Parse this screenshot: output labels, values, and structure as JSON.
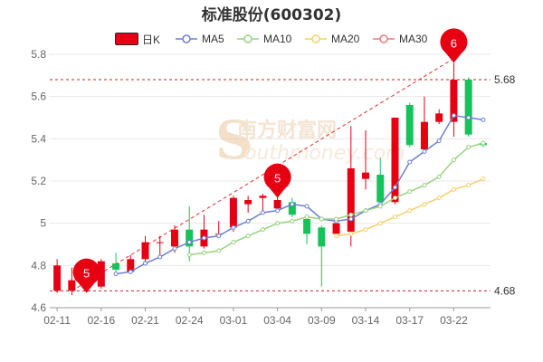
{
  "title": "标准股份(600302)",
  "legend": {
    "kline": "日K",
    "ma5": "MA5",
    "ma10": "MA10",
    "ma20": "MA20",
    "ma30": "MA30"
  },
  "colors": {
    "up": "#e60012",
    "down": "#15c35b",
    "ma5": "#6d7fd3",
    "ma10": "#98d37f",
    "ma20": "#f7cf6b",
    "ma30": "#ee7b7b",
    "grid": "#e8e8e8",
    "marker": "#e60012"
  },
  "watermark": {
    "cn": "南方财富网",
    "en": "outhmoney.com",
    "logo": "S"
  },
  "chart_data": {
    "type": "candlestick",
    "ylim": [
      4.6,
      5.8
    ],
    "y_ticks": [
      4.6,
      4.8,
      5,
      5.2,
      5.4,
      5.6,
      5.8
    ],
    "y_tick_labels": [
      "4.6",
      "4.8",
      "5",
      "5.2",
      "5.4",
      "5.6",
      "5.8"
    ],
    "x_tick_labels": [
      {
        "index": 0,
        "label": "02-11"
      },
      {
        "index": 3,
        "label": "02-16"
      },
      {
        "index": 6,
        "label": "02-21"
      },
      {
        "index": 9,
        "label": "02-24"
      },
      {
        "index": 12,
        "label": "03-01"
      },
      {
        "index": 15,
        "label": "03-04"
      },
      {
        "index": 18,
        "label": "03-09"
      },
      {
        "index": 21,
        "label": "03-14"
      },
      {
        "index": 24,
        "label": "03-17"
      },
      {
        "index": 27,
        "label": "03-22"
      }
    ],
    "candles": [
      {
        "open": 4.68,
        "close": 4.8,
        "high": 4.83,
        "low": 4.67
      },
      {
        "open": 4.68,
        "close": 4.73,
        "high": 4.79,
        "low": 4.66
      },
      {
        "open": 4.72,
        "close": 4.69,
        "high": 4.74,
        "low": 4.68
      },
      {
        "open": 4.7,
        "close": 4.82,
        "high": 4.83,
        "low": 4.69
      },
      {
        "open": 4.81,
        "close": 4.78,
        "high": 4.86,
        "low": 4.77
      },
      {
        "open": 4.77,
        "close": 4.83,
        "high": 4.85,
        "low": 4.76
      },
      {
        "open": 4.83,
        "close": 4.91,
        "high": 4.94,
        "low": 4.82
      },
      {
        "open": 4.91,
        "close": 4.91,
        "high": 4.94,
        "low": 4.84
      },
      {
        "open": 4.89,
        "close": 4.97,
        "high": 4.99,
        "low": 4.86
      },
      {
        "open": 4.97,
        "close": 4.89,
        "high": 5.08,
        "low": 4.82
      },
      {
        "open": 4.89,
        "close": 4.97,
        "high": 5.04,
        "low": 4.88
      },
      {
        "open": 4.95,
        "close": 4.95,
        "high": 5.01,
        "low": 4.93
      },
      {
        "open": 4.98,
        "close": 5.12,
        "high": 5.13,
        "low": 4.96
      },
      {
        "open": 5.09,
        "close": 5.11,
        "high": 5.13,
        "low": 5.05
      },
      {
        "open": 5.12,
        "close": 5.13,
        "high": 5.14,
        "low": 5.06
      },
      {
        "open": 5.07,
        "close": 5.11,
        "high": 5.14,
        "low": 5.06
      },
      {
        "open": 5.1,
        "close": 5.04,
        "high": 5.12,
        "low": 5.03
      },
      {
        "open": 5.02,
        "close": 4.95,
        "high": 5.03,
        "low": 4.9
      },
      {
        "open": 4.98,
        "close": 4.89,
        "high": 4.99,
        "low": 4.7
      },
      {
        "open": 4.95,
        "close": 5.0,
        "high": 5.01,
        "low": 4.94
      },
      {
        "open": 4.96,
        "close": 5.26,
        "high": 5.46,
        "low": 4.89
      },
      {
        "open": 5.21,
        "close": 5.24,
        "high": 5.44,
        "low": 5.16
      },
      {
        "open": 5.23,
        "close": 5.1,
        "high": 5.31,
        "low": 5.09
      },
      {
        "open": 5.1,
        "close": 5.5,
        "high": 5.5,
        "low": 5.09
      },
      {
        "open": 5.56,
        "close": 5.37,
        "high": 5.57,
        "low": 5.36
      },
      {
        "open": 5.35,
        "close": 5.48,
        "high": 5.6,
        "low": 5.34
      },
      {
        "open": 5.48,
        "close": 5.52,
        "high": 5.54,
        "low": 5.47
      },
      {
        "open": 5.48,
        "close": 5.68,
        "high": 5.76,
        "low": 5.41
      },
      {
        "open": 5.68,
        "close": 5.42,
        "high": 5.69,
        "low": 5.41
      },
      {
        "open": 5.38,
        "close": 5.37,
        "high": 5.39,
        "low": 5.36
      }
    ],
    "ma5": [
      null,
      null,
      null,
      null,
      4.76,
      4.77,
      4.81,
      4.84,
      4.88,
      4.91,
      4.93,
      4.94,
      4.98,
      5.01,
      5.05,
      5.06,
      5.09,
      5.08,
      5.02,
      5.01,
      5.02,
      5.06,
      5.09,
      5.17,
      5.29,
      5.34,
      5.39,
      5.51,
      5.5,
      5.49
    ],
    "ma10": [
      null,
      null,
      null,
      null,
      null,
      null,
      null,
      null,
      null,
      4.85,
      4.86,
      4.87,
      4.91,
      4.94,
      4.97,
      5.0,
      5.01,
      5.03,
      5.02,
      5.02,
      5.04,
      5.06,
      5.08,
      5.12,
      5.15,
      5.18,
      5.22,
      5.3,
      5.36,
      5.38
    ],
    "ma20": [
      null,
      null,
      null,
      null,
      null,
      null,
      null,
      null,
      null,
      null,
      null,
      null,
      null,
      null,
      null,
      null,
      null,
      null,
      null,
      4.94,
      4.95,
      4.97,
      5.0,
      5.03,
      5.06,
      5.09,
      5.12,
      5.16,
      5.18,
      5.21
    ],
    "ma30": [],
    "reference_lines": [
      {
        "value": 5.68,
        "label": "5.68"
      },
      {
        "value": 4.68,
        "label": "4.68"
      }
    ],
    "trend_line": {
      "from_index": 1,
      "from_value": 4.68,
      "to_index": 27,
      "to_value": 5.78
    },
    "markers": [
      {
        "index": 2,
        "value": 4.67,
        "label": "5"
      },
      {
        "index": 15,
        "value": 5.12,
        "label": "5"
      },
      {
        "index": 27,
        "value": 5.76,
        "label": "6"
      }
    ]
  }
}
